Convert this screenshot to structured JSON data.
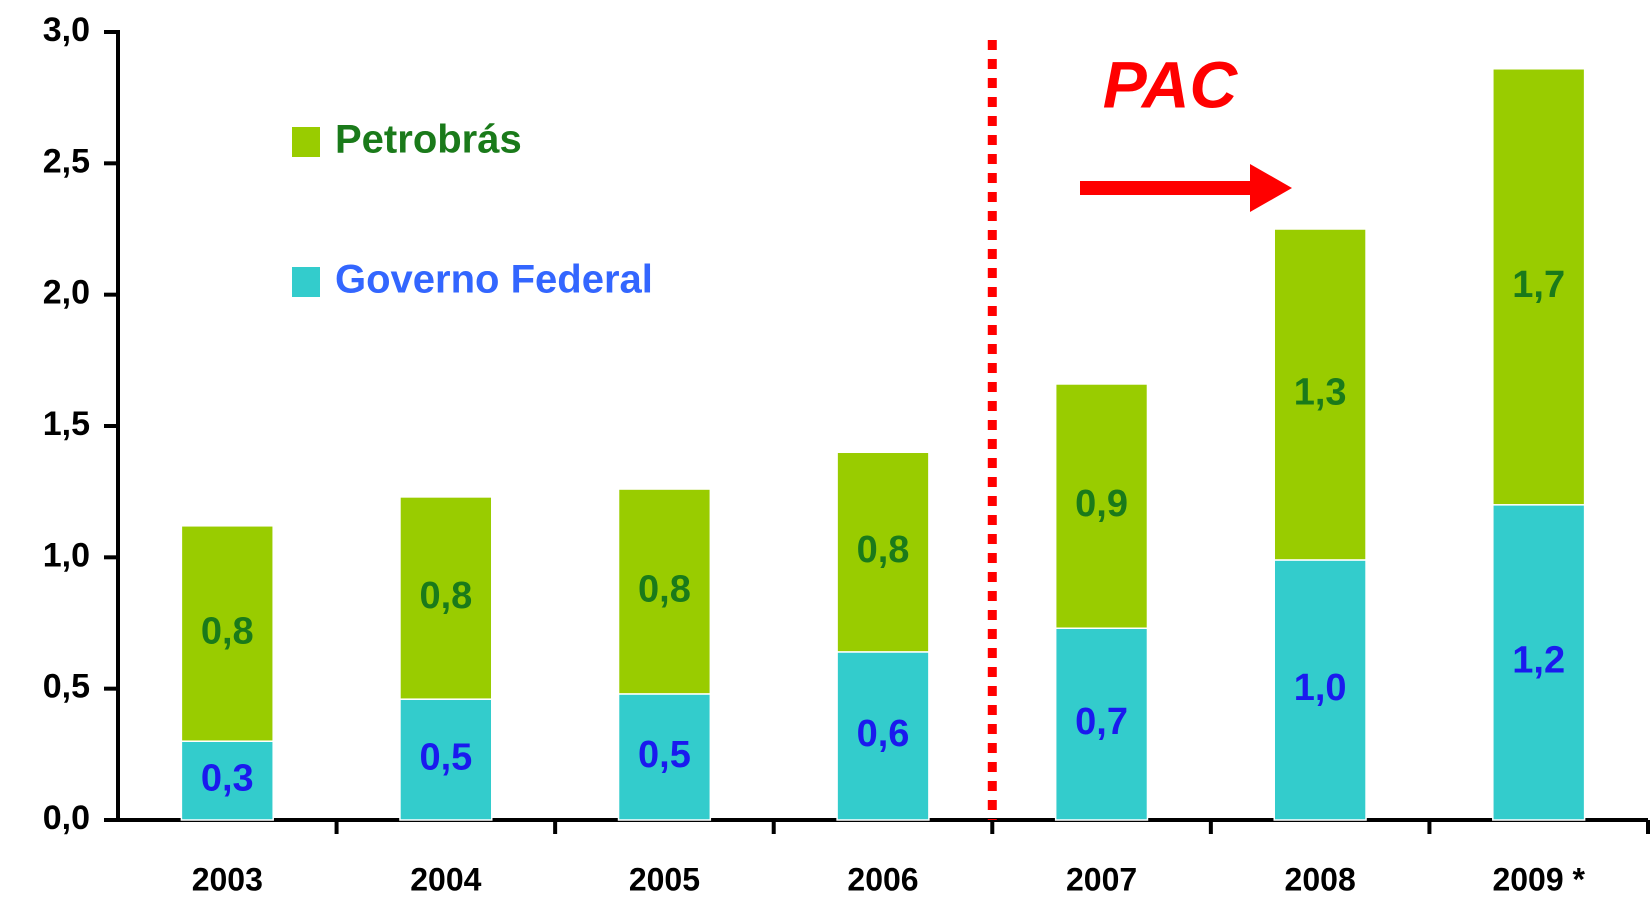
{
  "chart_data": {
    "type": "bar",
    "stacked": true,
    "annotation": "PAC",
    "categories": [
      "2003",
      "2004",
      "2005",
      "2006",
      "2007",
      "2008",
      "2009 *"
    ],
    "series": [
      {
        "name": "Governo Federal",
        "color": "#33cccc",
        "label_color": "#1a1aee",
        "values": [
          0.3,
          0.46,
          0.48,
          0.64,
          0.73,
          0.99,
          1.2
        ],
        "value_labels": [
          "0,3",
          "0,5",
          "0,5",
          "0,6",
          "0,7",
          "1,0",
          "1,2"
        ]
      },
      {
        "name": "Petrobrás",
        "color": "#99cc00",
        "label_color": "#1a7a1a",
        "values": [
          0.82,
          0.77,
          0.78,
          0.76,
          0.93,
          1.26,
          1.66
        ],
        "value_labels": [
          "0,8",
          "0,8",
          "0,8",
          "0,8",
          "0,9",
          "1,3",
          "1,7"
        ]
      }
    ],
    "ylim": [
      0,
      3
    ],
    "yticks": [
      {
        "value": 0,
        "label": "0,0"
      },
      {
        "value": 0.5,
        "label": "0,5"
      },
      {
        "value": 1,
        "label": "1,0"
      },
      {
        "value": 1.5,
        "label": "1,5"
      },
      {
        "value": 2,
        "label": "2,0"
      },
      {
        "value": 2.5,
        "label": "2,5"
      },
      {
        "value": 3,
        "label": "3,0"
      }
    ],
    "grid": false,
    "legend": "top-left"
  }
}
